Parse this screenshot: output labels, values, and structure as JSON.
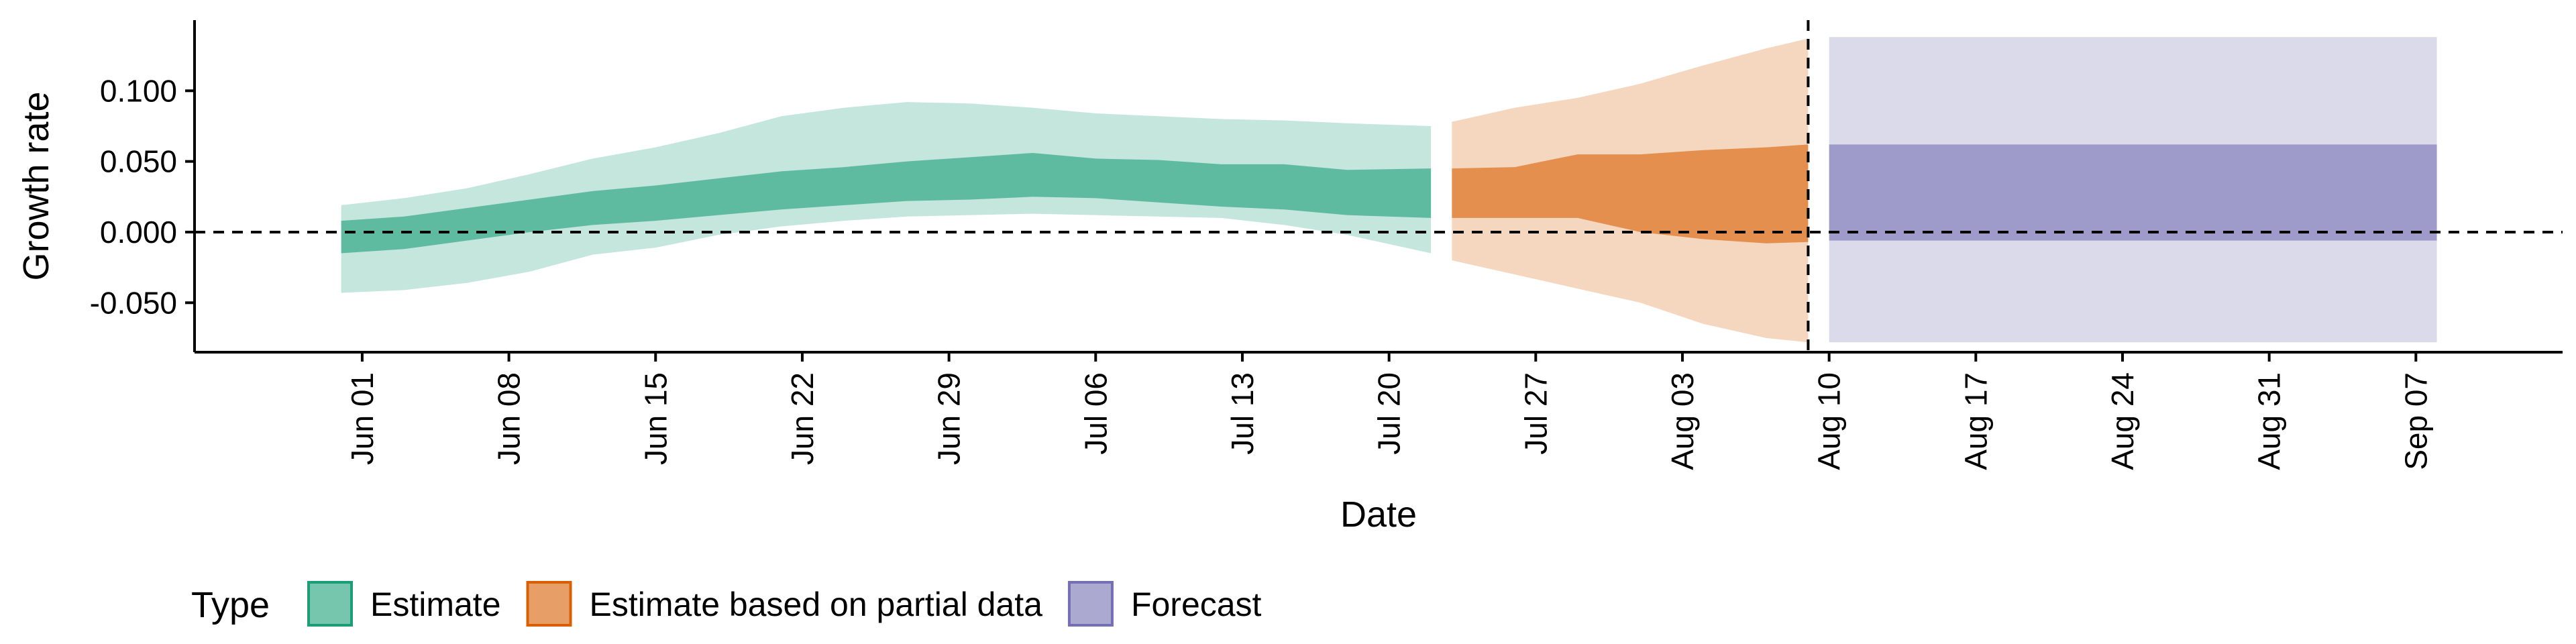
{
  "chart_data": {
    "type": "area",
    "xlabel": "Date",
    "ylabel": "Growth rate",
    "x_range": [
      "2020-05-24",
      "2020-09-14"
    ],
    "ylim": [
      -0.085,
      0.15
    ],
    "y_ticks": [
      {
        "value": 0.1,
        "label": "0.100"
      },
      {
        "value": 0.05,
        "label": "0.050"
      },
      {
        "value": 0.0,
        "label": "0.000"
      },
      {
        "value": -0.05,
        "label": "-0.050"
      }
    ],
    "x_ticks": [
      {
        "date": "2020-06-01",
        "label": "Jun 01"
      },
      {
        "date": "2020-06-08",
        "label": "Jun 08"
      },
      {
        "date": "2020-06-15",
        "label": "Jun 15"
      },
      {
        "date": "2020-06-22",
        "label": "Jun 22"
      },
      {
        "date": "2020-06-29",
        "label": "Jun 29"
      },
      {
        "date": "2020-07-06",
        "label": "Jul 06"
      },
      {
        "date": "2020-07-13",
        "label": "Jul 13"
      },
      {
        "date": "2020-07-20",
        "label": "Jul 20"
      },
      {
        "date": "2020-07-27",
        "label": "Jul 27"
      },
      {
        "date": "2020-08-03",
        "label": "Aug 03"
      },
      {
        "date": "2020-08-10",
        "label": "Aug 10"
      },
      {
        "date": "2020-08-17",
        "label": "Aug 17"
      },
      {
        "date": "2020-08-24",
        "label": "Aug 24"
      },
      {
        "date": "2020-08-31",
        "label": "Aug 31"
      },
      {
        "date": "2020-09-07",
        "label": "Sep 07"
      }
    ],
    "reference_lines": {
      "horizontal_y": 0.0,
      "vertical_date": "2020-08-09"
    },
    "grid": false,
    "legend": {
      "title": "Type",
      "position": "bottom",
      "entries": [
        {
          "label": "Estimate",
          "fill": "#1b9e77",
          "stroke": "#1b9e77"
        },
        {
          "label": "Estimate based on partial data",
          "fill": "#d95f02",
          "stroke": "#d95f02"
        },
        {
          "label": "Forecast",
          "fill": "#7570b3",
          "stroke": "#7570b3"
        }
      ]
    },
    "series": [
      {
        "type_index": 0,
        "points": [
          {
            "date": "2020-05-31",
            "lower90": -0.043,
            "lower50": -0.015,
            "upper50": 0.008,
            "upper90": 0.019
          },
          {
            "date": "2020-06-03",
            "lower90": -0.041,
            "lower50": -0.012,
            "upper50": 0.011,
            "upper90": 0.024
          },
          {
            "date": "2020-06-06",
            "lower90": -0.036,
            "lower50": -0.006,
            "upper50": 0.017,
            "upper90": 0.031
          },
          {
            "date": "2020-06-09",
            "lower90": -0.028,
            "lower50": 0.0,
            "upper50": 0.023,
            "upper90": 0.041
          },
          {
            "date": "2020-06-12",
            "lower90": -0.016,
            "lower50": 0.005,
            "upper50": 0.029,
            "upper90": 0.052
          },
          {
            "date": "2020-06-15",
            "lower90": -0.011,
            "lower50": 0.008,
            "upper50": 0.033,
            "upper90": 0.06
          },
          {
            "date": "2020-06-18",
            "lower90": -0.002,
            "lower50": 0.012,
            "upper50": 0.038,
            "upper90": 0.07
          },
          {
            "date": "2020-06-21",
            "lower90": 0.004,
            "lower50": 0.016,
            "upper50": 0.043,
            "upper90": 0.082
          },
          {
            "date": "2020-06-24",
            "lower90": 0.008,
            "lower50": 0.019,
            "upper50": 0.046,
            "upper90": 0.088
          },
          {
            "date": "2020-06-27",
            "lower90": 0.011,
            "lower50": 0.022,
            "upper50": 0.05,
            "upper90": 0.092
          },
          {
            "date": "2020-06-30",
            "lower90": 0.012,
            "lower50": 0.023,
            "upper50": 0.053,
            "upper90": 0.091
          },
          {
            "date": "2020-07-03",
            "lower90": 0.013,
            "lower50": 0.025,
            "upper50": 0.056,
            "upper90": 0.088
          },
          {
            "date": "2020-07-06",
            "lower90": 0.012,
            "lower50": 0.024,
            "upper50": 0.052,
            "upper90": 0.084
          },
          {
            "date": "2020-07-09",
            "lower90": 0.011,
            "lower50": 0.021,
            "upper50": 0.051,
            "upper90": 0.082
          },
          {
            "date": "2020-07-12",
            "lower90": 0.01,
            "lower50": 0.018,
            "upper50": 0.048,
            "upper90": 0.08
          },
          {
            "date": "2020-07-15",
            "lower90": 0.005,
            "lower50": 0.016,
            "upper50": 0.048,
            "upper90": 0.079
          },
          {
            "date": "2020-07-18",
            "lower90": -0.002,
            "lower50": 0.012,
            "upper50": 0.044,
            "upper90": 0.077
          },
          {
            "date": "2020-07-22",
            "lower90": -0.015,
            "lower50": 0.01,
            "upper50": 0.045,
            "upper90": 0.075
          }
        ]
      },
      {
        "type_index": 1,
        "points": [
          {
            "date": "2020-07-23",
            "lower90": -0.02,
            "lower50": 0.01,
            "upper50": 0.045,
            "upper90": 0.078
          },
          {
            "date": "2020-07-26",
            "lower90": -0.03,
            "lower50": 0.01,
            "upper50": 0.046,
            "upper90": 0.088
          },
          {
            "date": "2020-07-29",
            "lower90": -0.04,
            "lower50": 0.01,
            "upper50": 0.055,
            "upper90": 0.095
          },
          {
            "date": "2020-08-01",
            "lower90": -0.05,
            "lower50": 0.0,
            "upper50": 0.055,
            "upper90": 0.105
          },
          {
            "date": "2020-08-04",
            "lower90": -0.065,
            "lower50": -0.005,
            "upper50": 0.058,
            "upper90": 0.118
          },
          {
            "date": "2020-08-07",
            "lower90": -0.075,
            "lower50": -0.008,
            "upper50": 0.06,
            "upper90": 0.13
          },
          {
            "date": "2020-08-09",
            "lower90": -0.078,
            "lower50": -0.007,
            "upper50": 0.062,
            "upper90": 0.137
          }
        ]
      },
      {
        "type_index": 2,
        "points": [
          {
            "date": "2020-08-10",
            "lower90": -0.078,
            "lower50": -0.006,
            "upper50": 0.062,
            "upper90": 0.138
          },
          {
            "date": "2020-09-08",
            "lower90": -0.078,
            "lower50": -0.006,
            "upper50": 0.062,
            "upper90": 0.138
          }
        ]
      }
    ]
  }
}
